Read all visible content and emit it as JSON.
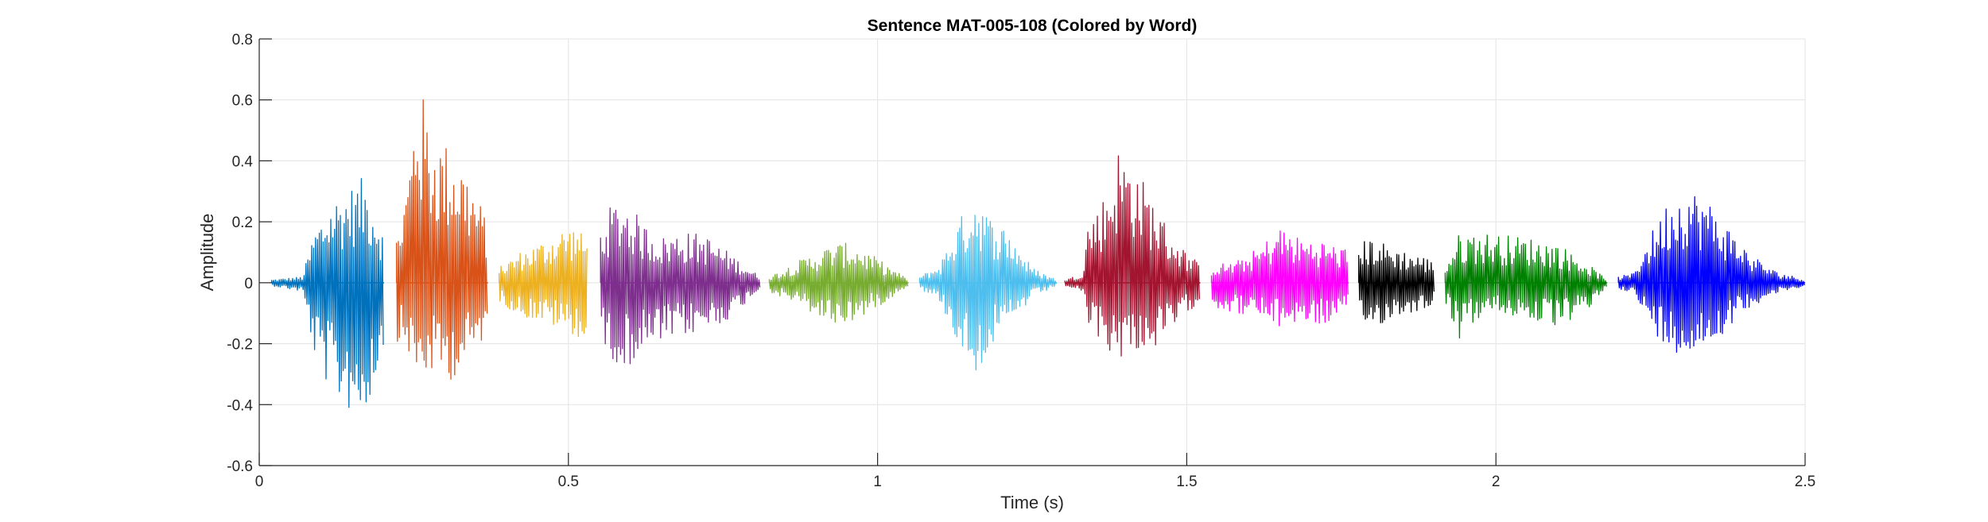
{
  "chart_data": {
    "type": "line",
    "title": "Sentence MAT-005-108 (Colored by Word)",
    "xlabel": "Time (s)",
    "ylabel": "Amplitude",
    "xlim": [
      0,
      2.5
    ],
    "ylim": [
      -0.6,
      0.8
    ],
    "xticks": [
      0,
      0.5,
      1,
      1.5,
      2,
      2.5
    ],
    "xtick_labels": [
      "0",
      "0.5",
      "1",
      "1.5",
      "2",
      "2.5"
    ],
    "yticks": [
      -0.6,
      -0.4,
      -0.2,
      0,
      0.2,
      0.4,
      0.6,
      0.8
    ],
    "ytick_labels": [
      "-0.6",
      "-0.4",
      "-0.2",
      "0",
      "0.2",
      "0.4",
      "0.6",
      "0.8"
    ],
    "grid": true,
    "legend": false,
    "series": [
      {
        "color": "#0072BD",
        "start": 0.02,
        "end": 0.202,
        "envelope": [
          [
            0.02,
            0.01,
            -0.01
          ],
          [
            0.07,
            0.02,
            -0.03
          ],
          [
            0.09,
            0.18,
            -0.25
          ],
          [
            0.12,
            0.28,
            -0.38
          ],
          [
            0.15,
            0.32,
            -0.43
          ],
          [
            0.17,
            0.35,
            -0.45
          ],
          [
            0.19,
            0.25,
            -0.3
          ],
          [
            0.202,
            0.16,
            -0.22
          ]
        ]
      },
      {
        "color": "#D95319",
        "start": 0.222,
        "end": 0.37,
        "envelope": [
          [
            0.222,
            0.15,
            -0.19
          ],
          [
            0.24,
            0.35,
            -0.22
          ],
          [
            0.25,
            0.55,
            -0.3
          ],
          [
            0.255,
            0.69,
            -0.33
          ],
          [
            0.28,
            0.5,
            -0.3
          ],
          [
            0.31,
            0.45,
            -0.32
          ],
          [
            0.33,
            0.4,
            -0.28
          ],
          [
            0.35,
            0.3,
            -0.23
          ],
          [
            0.37,
            0.2,
            -0.16
          ]
        ]
      },
      {
        "color": "#EDB120",
        "start": 0.388,
        "end": 0.53,
        "envelope": [
          [
            0.388,
            0.05,
            -0.06
          ],
          [
            0.42,
            0.1,
            -0.11
          ],
          [
            0.46,
            0.14,
            -0.13
          ],
          [
            0.49,
            0.18,
            -0.16
          ],
          [
            0.51,
            0.19,
            -0.17
          ],
          [
            0.53,
            0.14,
            -0.22
          ]
        ]
      },
      {
        "color": "#7E2F8E",
        "start": 0.552,
        "end": 0.81,
        "envelope": [
          [
            0.552,
            0.18,
            -0.2
          ],
          [
            0.57,
            0.26,
            -0.25
          ],
          [
            0.59,
            0.28,
            -0.28
          ],
          [
            0.62,
            0.2,
            -0.24
          ],
          [
            0.65,
            0.15,
            -0.2
          ],
          [
            0.68,
            0.17,
            -0.18
          ],
          [
            0.72,
            0.16,
            -0.16
          ],
          [
            0.76,
            0.1,
            -0.12
          ],
          [
            0.81,
            0.02,
            -0.02
          ]
        ]
      },
      {
        "color": "#77AC30",
        "start": 0.825,
        "end": 1.05,
        "envelope": [
          [
            0.825,
            0.02,
            -0.03
          ],
          [
            0.86,
            0.06,
            -0.06
          ],
          [
            0.9,
            0.1,
            -0.11
          ],
          [
            0.93,
            0.13,
            -0.14
          ],
          [
            0.96,
            0.13,
            -0.13
          ],
          [
            1.0,
            0.08,
            -0.08
          ],
          [
            1.05,
            0.01,
            -0.01
          ]
        ]
      },
      {
        "color": "#4DBEEE",
        "start": 1.068,
        "end": 1.29,
        "envelope": [
          [
            1.068,
            0.02,
            -0.02
          ],
          [
            1.1,
            0.06,
            -0.06
          ],
          [
            1.13,
            0.2,
            -0.2
          ],
          [
            1.16,
            0.31,
            -0.3
          ],
          [
            1.18,
            0.22,
            -0.22
          ],
          [
            1.21,
            0.18,
            -0.16
          ],
          [
            1.25,
            0.05,
            -0.05
          ],
          [
            1.29,
            0.01,
            -0.01
          ]
        ]
      },
      {
        "color": "#A2142F",
        "start": 1.303,
        "end": 1.522,
        "envelope": [
          [
            1.303,
            0.01,
            -0.01
          ],
          [
            1.33,
            0.03,
            -0.03
          ],
          [
            1.34,
            0.2,
            -0.14
          ],
          [
            1.37,
            0.3,
            -0.22
          ],
          [
            1.39,
            0.45,
            -0.25
          ],
          [
            1.41,
            0.41,
            -0.22
          ],
          [
            1.44,
            0.3,
            -0.23
          ],
          [
            1.47,
            0.18,
            -0.18
          ],
          [
            1.5,
            0.1,
            -0.1
          ],
          [
            1.522,
            0.06,
            -0.06
          ]
        ]
      },
      {
        "color": "#FF00FF",
        "start": 1.54,
        "end": 1.762,
        "envelope": [
          [
            1.54,
            0.06,
            -0.08
          ],
          [
            1.58,
            0.07,
            -0.1
          ],
          [
            1.62,
            0.12,
            -0.12
          ],
          [
            1.65,
            0.19,
            -0.15
          ],
          [
            1.68,
            0.15,
            -0.13
          ],
          [
            1.72,
            0.14,
            -0.14
          ],
          [
            1.76,
            0.11,
            -0.11
          ]
        ]
      },
      {
        "color": "#000000",
        "start": 1.778,
        "end": 1.9,
        "envelope": [
          [
            1.778,
            0.13,
            -0.14
          ],
          [
            1.8,
            0.15,
            -0.15
          ],
          [
            1.83,
            0.12,
            -0.12
          ],
          [
            1.86,
            0.1,
            -0.1
          ],
          [
            1.88,
            0.09,
            -0.09
          ],
          [
            1.9,
            0.07,
            -0.07
          ]
        ]
      },
      {
        "color": "#008000",
        "start": 1.918,
        "end": 2.18,
        "envelope": [
          [
            1.918,
            0.06,
            -0.06
          ],
          [
            1.94,
            0.16,
            -0.19
          ],
          [
            1.97,
            0.17,
            -0.12
          ],
          [
            2.0,
            0.16,
            -0.1
          ],
          [
            2.05,
            0.15,
            -0.12
          ],
          [
            2.1,
            0.13,
            -0.15
          ],
          [
            2.15,
            0.06,
            -0.09
          ],
          [
            2.18,
            0.01,
            -0.01
          ]
        ]
      },
      {
        "color": "#0000FF",
        "start": 2.198,
        "end": 2.5,
        "envelope": [
          [
            2.198,
            0.02,
            -0.02
          ],
          [
            2.22,
            0.03,
            -0.03
          ],
          [
            2.25,
            0.16,
            -0.15
          ],
          [
            2.28,
            0.28,
            -0.22
          ],
          [
            2.31,
            0.32,
            -0.24
          ],
          [
            2.34,
            0.28,
            -0.22
          ],
          [
            2.37,
            0.2,
            -0.16
          ],
          [
            2.41,
            0.1,
            -0.08
          ],
          [
            2.45,
            0.04,
            -0.04
          ],
          [
            2.5,
            0.01,
            -0.01
          ]
        ]
      }
    ]
  }
}
